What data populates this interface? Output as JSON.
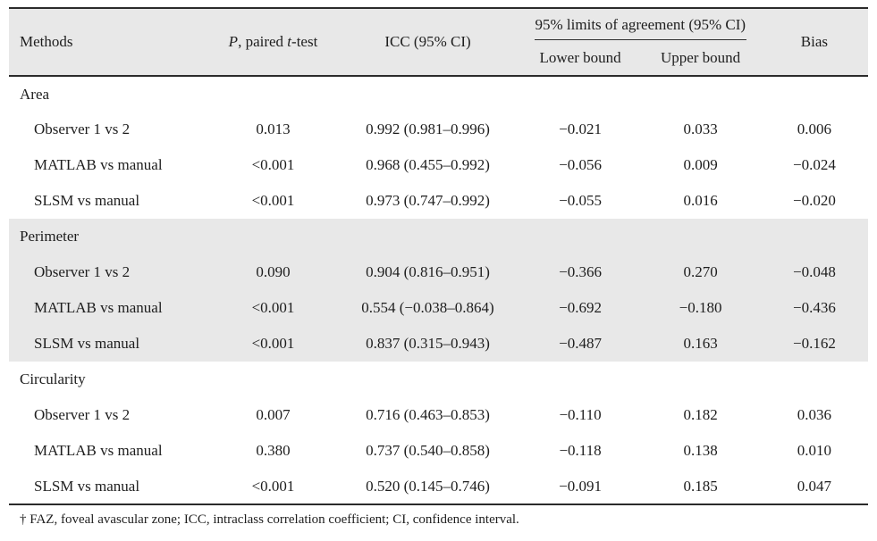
{
  "table": {
    "header": {
      "methods": "Methods",
      "p_italic": "P",
      "p_mid": ", paired ",
      "t_italic": "t",
      "p_suffix": "-test",
      "icc": "ICC (95% CI)",
      "loa_group": "95% limits of agreement (95% CI)",
      "lower": "Lower bound",
      "upper": "Upper bound",
      "bias": "Bias"
    },
    "groups": [
      {
        "label": "Area",
        "shaded": false,
        "rows": [
          {
            "method": "Observer 1 vs 2",
            "p": "0.013",
            "icc": "0.992 (0.981–0.996)",
            "lower": "−0.021",
            "upper": "0.033",
            "bias": "0.006"
          },
          {
            "method": "MATLAB vs manual",
            "p": "<0.001",
            "icc": "0.968 (0.455–0.992)",
            "lower": "−0.056",
            "upper": "0.009",
            "bias": "−0.024"
          },
          {
            "method": "SLSM vs manual",
            "p": "<0.001",
            "icc": "0.973 (0.747–0.992)",
            "lower": "−0.055",
            "upper": "0.016",
            "bias": "−0.020"
          }
        ]
      },
      {
        "label": "Perimeter",
        "shaded": true,
        "rows": [
          {
            "method": "Observer 1 vs 2",
            "p": "0.090",
            "icc": "0.904 (0.816–0.951)",
            "lower": "−0.366",
            "upper": "0.270",
            "bias": "−0.048"
          },
          {
            "method": "MATLAB vs manual",
            "p": "<0.001",
            "icc": "0.554 (−0.038–0.864)",
            "lower": "−0.692",
            "upper": "−0.180",
            "bias": "−0.436"
          },
          {
            "method": "SLSM vs manual",
            "p": "<0.001",
            "icc": "0.837 (0.315–0.943)",
            "lower": "−0.487",
            "upper": "0.163",
            "bias": "−0.162"
          }
        ]
      },
      {
        "label": "Circularity",
        "shaded": false,
        "rows": [
          {
            "method": "Observer 1 vs 2",
            "p": "0.007",
            "icc": "0.716 (0.463–0.853)",
            "lower": "−0.110",
            "upper": "0.182",
            "bias": "0.036"
          },
          {
            "method": "MATLAB vs manual",
            "p": "0.380",
            "icc": "0.737 (0.540–0.858)",
            "lower": "−0.118",
            "upper": "0.138",
            "bias": "0.010"
          },
          {
            "method": "SLSM vs manual",
            "p": "<0.001",
            "icc": "0.520 (0.145–0.746)",
            "lower": "−0.091",
            "upper": "0.185",
            "bias": "0.047"
          }
        ]
      }
    ],
    "footnote": "† FAZ, foveal avascular zone; ICC, intraclass correlation coefficient; CI, confidence interval."
  },
  "colors": {
    "row_shade": "#e8e8e8",
    "rule": "#2b2b2b",
    "text": "#1e1e1e",
    "background": "#ffffff"
  }
}
